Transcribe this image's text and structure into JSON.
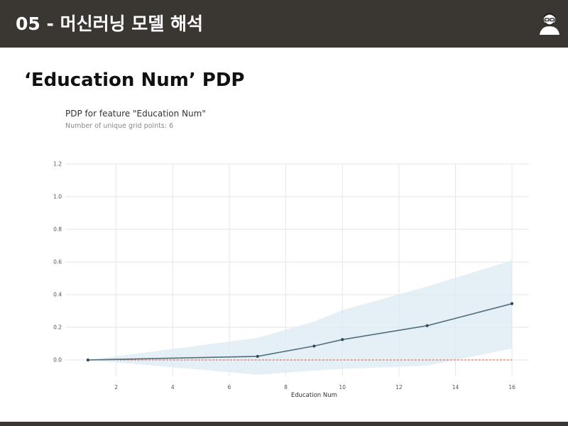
{
  "header": {
    "title": "05 - 머신러닝 모델 해석",
    "avatar_icon": "person-avatar-icon"
  },
  "slide": {
    "title": "‘Education Num’ PDP"
  },
  "colors": {
    "header_bg": "#3a3632",
    "line": "#4f6f7e",
    "band": "#dceaf3",
    "baseline": "#e0553a",
    "grid": "#e6e6e6"
  },
  "chart_data": {
    "type": "line",
    "title": "PDP for feature \"Education Num\"",
    "subtitle": "Number of unique grid points: 6",
    "xlabel": "Education Num",
    "ylabel": "",
    "xlim": [
      0.2,
      16.6
    ],
    "ylim": [
      -0.1,
      1.2
    ],
    "x_ticks": [
      2,
      4,
      6,
      8,
      10,
      12,
      14,
      16
    ],
    "x_tick_labels": [
      "2",
      "4",
      "6",
      "8",
      "10",
      "12",
      "14",
      "16"
    ],
    "y_ticks": [
      0.0,
      0.2,
      0.4,
      0.6,
      0.8,
      1.0,
      1.2
    ],
    "y_tick_labels": [
      "0.0",
      "0.2",
      "0.4",
      "0.6",
      "0.8",
      "1.0",
      "1.2"
    ],
    "grid": true,
    "series": [
      {
        "x": [
          1,
          7,
          9,
          10,
          13,
          16
        ],
        "y": [
          0.0,
          0.022,
          0.085,
          0.125,
          0.21,
          0.345
        ],
        "upper": [
          0.0,
          0.135,
          0.235,
          0.305,
          0.45,
          0.61
        ],
        "lower": [
          0.0,
          -0.09,
          -0.065,
          -0.055,
          -0.035,
          0.07
        ]
      }
    ],
    "baseline": 0.0
  }
}
